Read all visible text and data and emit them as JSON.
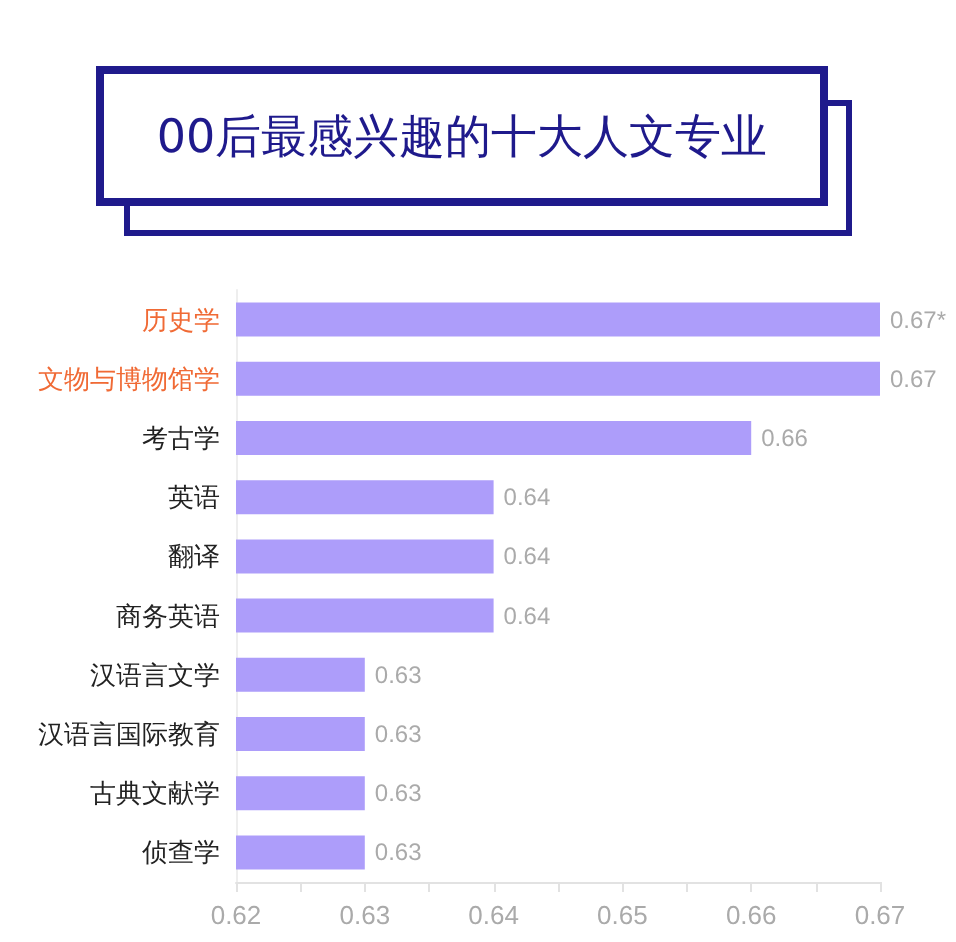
{
  "chart_data": {
    "type": "bar",
    "orientation": "horizontal",
    "title": "00后最感兴趣的十大人文专业",
    "categories": [
      "历史学",
      "文物与博物馆学",
      "考古学",
      "英语",
      "翻译",
      "商务英语",
      "汉语言文学",
      "汉语言国际教育",
      "古典文献学",
      "侦查学"
    ],
    "values": [
      0.67,
      0.67,
      0.66,
      0.64,
      0.64,
      0.64,
      0.63,
      0.63,
      0.63,
      0.63
    ],
    "value_labels": [
      "0.67*",
      "0.67",
      "0.66",
      "0.64",
      "0.64",
      "0.64",
      "0.63",
      "0.63",
      "0.63",
      "0.63"
    ],
    "color": "#ad9dfa",
    "xlim": [
      0.62,
      0.67
    ],
    "xticks": [
      0.62,
      {
        "value": 0.625,
        "label": null
      },
      0.63,
      {
        "value": 0.635,
        "label": null
      },
      0.64,
      {
        "value": 0.645,
        "label": null
      },
      0.65,
      {
        "value": 0.655,
        "label": null
      },
      0.66,
      {
        "value": 0.665,
        "label": null
      },
      0.67
    ],
    "grid": false
  }
}
